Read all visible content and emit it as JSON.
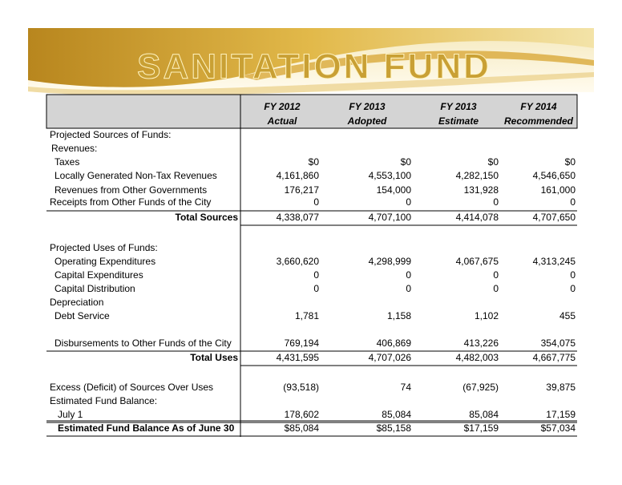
{
  "header": {
    "title": "SANITATION FUND"
  },
  "table": {
    "columns": [
      {
        "line1": "FY 2012",
        "line2": "Actual"
      },
      {
        "line1": "FY 2013",
        "line2": "Adopted"
      },
      {
        "line1": "FY 2013",
        "line2": "Estimate"
      },
      {
        "line1": "FY 2014",
        "line2": "Recommended"
      }
    ],
    "rows": [
      {
        "label": "Projected Sources of Funds:"
      },
      {
        "label": "Revenues:"
      },
      {
        "label": "Taxes",
        "values": [
          "$0",
          "$0",
          "$0",
          "$0"
        ]
      },
      {
        "label": "Locally Generated Non-Tax Revenues",
        "values": [
          "4,161,860",
          "4,553,100",
          "4,282,150",
          "4,546,650"
        ]
      },
      {
        "label": "Revenues from Other Governments",
        "values": [
          "176,217",
          "154,000",
          "131,928",
          "161,000"
        ]
      },
      {
        "label": "Receipts from Other Funds of the City",
        "values": [
          "0",
          "0",
          "0",
          "0"
        ]
      },
      {
        "label": "Total Sources",
        "values": [
          "4,338,077",
          "4,707,100",
          "4,414,078",
          "4,707,650"
        ]
      },
      {
        "label": "Projected Uses of Funds:"
      },
      {
        "label": "Operating Expenditures",
        "values": [
          "3,660,620",
          "4,298,999",
          "4,067,675",
          "4,313,245"
        ]
      },
      {
        "label": "Capital Expenditures",
        "values": [
          "0",
          "0",
          "0",
          "0"
        ]
      },
      {
        "label": "Capital Distribution",
        "values": [
          "0",
          "0",
          "0",
          "0"
        ]
      },
      {
        "label": "Depreciation"
      },
      {
        "label": "Debt Service",
        "values": [
          "1,781",
          "1,158",
          "1,102",
          "455"
        ]
      },
      {
        "label": "Disbursements to Other Funds of the City",
        "values": [
          "769,194",
          "406,869",
          "413,226",
          "354,075"
        ]
      },
      {
        "label": "Total Uses",
        "values": [
          "4,431,595",
          "4,707,026",
          "4,482,003",
          "4,667,775"
        ]
      },
      {
        "label": "Excess (Deficit) of Sources Over Uses",
        "values": [
          "(93,518)",
          "74",
          "(67,925)",
          "39,875"
        ]
      },
      {
        "label": "Estimated Fund Balance:"
      },
      {
        "label": "July 1",
        "values": [
          "178,602",
          "85,084",
          "85,084",
          "17,159"
        ]
      },
      {
        "label": "Estimated Fund Balance As of June 30",
        "values": [
          "$85,084",
          "$85,158",
          "$17,159",
          "$57,034"
        ]
      }
    ]
  }
}
